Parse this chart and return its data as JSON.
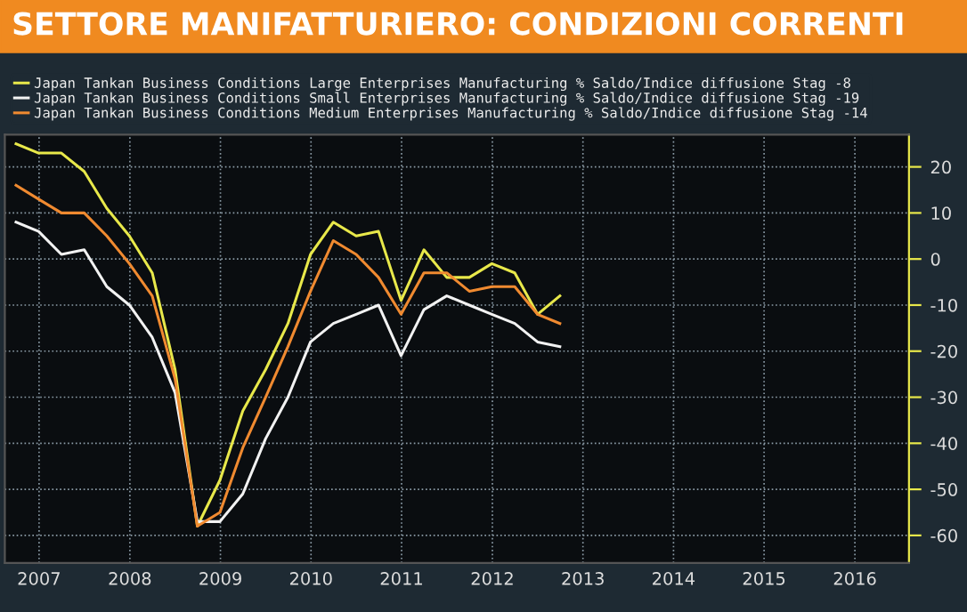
{
  "chart_data": {
    "type": "line",
    "title": "SETTORE MANIFATTURIERO: CONDIZIONI CORRENTI",
    "x": [
      "2007-03-31",
      "2007-06-30",
      "2007-09-30",
      "2007-12-31",
      "2008-03-31",
      "2008-06-30",
      "2008-09-30",
      "2008-12-31",
      "2009-03-31",
      "2009-06-30",
      "2009-09-30",
      "2009-12-31",
      "2010-03-31",
      "2010-06-30",
      "2010-09-30",
      "2010-12-31",
      "2011-03-31",
      "2011-06-30",
      "2011-09-30",
      "2011-12-31",
      "2012-03-31",
      "2012-06-30",
      "2012-09-30",
      "2012-12-31",
      "2013-03-31"
    ],
    "series": [
      {
        "name": "Japan Tankan Business Conditions Large Enterprises Manufacturing % Saldo/Indice diffusione Stag -8",
        "color": "#e8e84a",
        "values": [
          25,
          23,
          23,
          19,
          11,
          5,
          -3,
          -24,
          -58,
          -48,
          -33,
          -24,
          -14,
          1,
          8,
          5,
          6,
          -9,
          2,
          -4,
          -4,
          -1,
          -3,
          -12,
          -8
        ]
      },
      {
        "name": "Japan Tankan Business Conditions Small Enterprises Manufacturing % Saldo/Indice diffusione Stag -19",
        "color": "#f2f2f2",
        "values": [
          8,
          6,
          1,
          2,
          -6,
          -10,
          -17,
          -29,
          -57,
          -57,
          -51,
          -39,
          -30,
          -18,
          -14,
          -12,
          -10,
          -21,
          -11,
          -8,
          -10,
          -12,
          -14,
          -18,
          -19
        ]
      },
      {
        "name": "Japan Tankan Business Conditions Medium Enterprises Manufacturing % Saldo/Indice diffusione Stag -14",
        "color": "#f08a30",
        "values": [
          16,
          13,
          10,
          10,
          5,
          -1,
          -8,
          -26,
          -58,
          -55,
          -41,
          -30,
          -19,
          -7,
          4,
          1,
          -4,
          -12,
          -3,
          -3,
          -7,
          -6,
          -6,
          -12,
          -14
        ]
      }
    ],
    "xlim": [
      "2007-02-14",
      "2017-02-05"
    ],
    "xticks": [
      {
        "value": "2007-07-02",
        "label": "2007"
      },
      {
        "value": "2008-07-02",
        "label": "2008"
      },
      {
        "value": "2009-07-02",
        "label": "2009"
      },
      {
        "value": "2010-07-02",
        "label": "2010"
      },
      {
        "value": "2011-07-02",
        "label": "2011"
      },
      {
        "value": "2012-07-02",
        "label": "2012"
      },
      {
        "value": "2013-07-02",
        "label": "2013"
      },
      {
        "value": "2014-07-02",
        "label": "2014"
      },
      {
        "value": "2015-07-02",
        "label": "2015"
      },
      {
        "value": "2016-07-02",
        "label": "2016"
      }
    ],
    "ylim": [
      -66,
      27
    ],
    "yticks": [
      20,
      10,
      0,
      -10,
      -20,
      -30,
      -40,
      -50,
      -60
    ],
    "grid": true,
    "legend": "top",
    "line_style": "solid",
    "marker": "none"
  }
}
